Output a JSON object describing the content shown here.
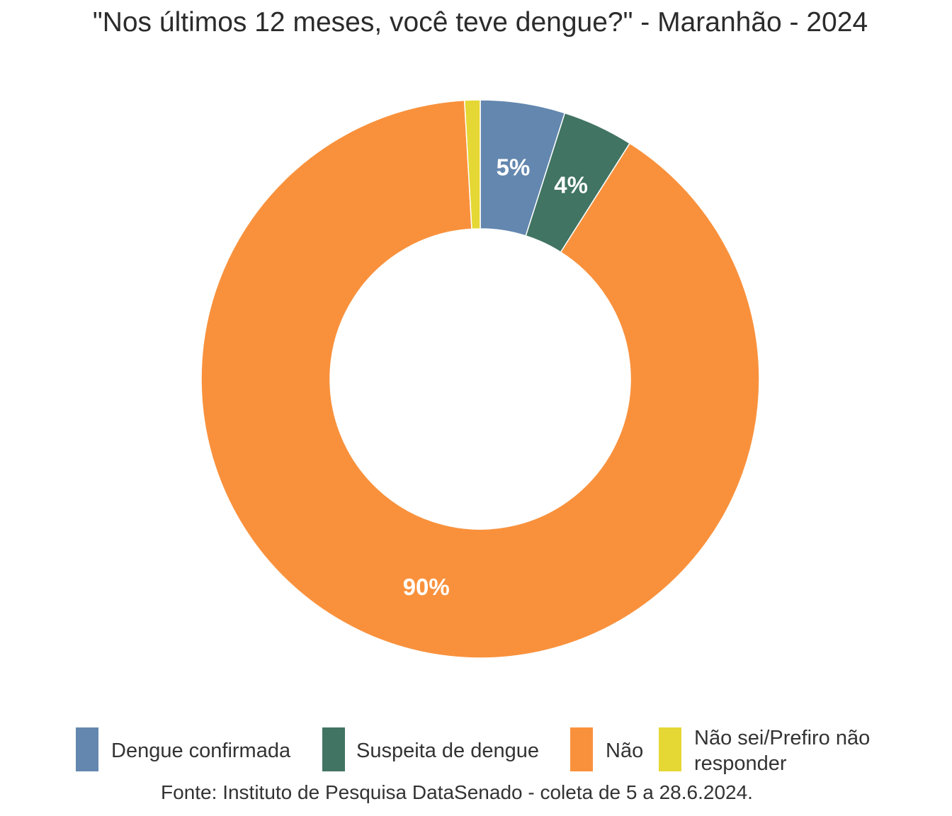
{
  "chart_data": {
    "type": "pie",
    "variant": "donut",
    "title": "\"Nos últimos 12 meses, você teve dengue?\" - Maranhão - 2024",
    "categories": [
      "Dengue confirmada",
      "Suspeita de dengue",
      "Não",
      "Não sei/Prefiro não responder"
    ],
    "values": [
      4.9,
      4.1,
      90.1,
      0.9
    ],
    "data_labels": [
      "5%",
      "4%",
      "90%",
      ""
    ],
    "colors": [
      "#6387AF",
      "#417462",
      "#F9913C",
      "#E5D734"
    ],
    "legend_position": "bottom",
    "source": "Fonte: Instituto de Pesquisa DataSenado - coleta de 5 a 28.6.2024."
  },
  "legend": {
    "items": [
      {
        "label": "Dengue confirmada"
      },
      {
        "label": "Suspeita de dengue"
      },
      {
        "label": "Não"
      },
      {
        "label_line1": "Não sei/Prefiro não",
        "label_line2": "responder"
      }
    ]
  }
}
